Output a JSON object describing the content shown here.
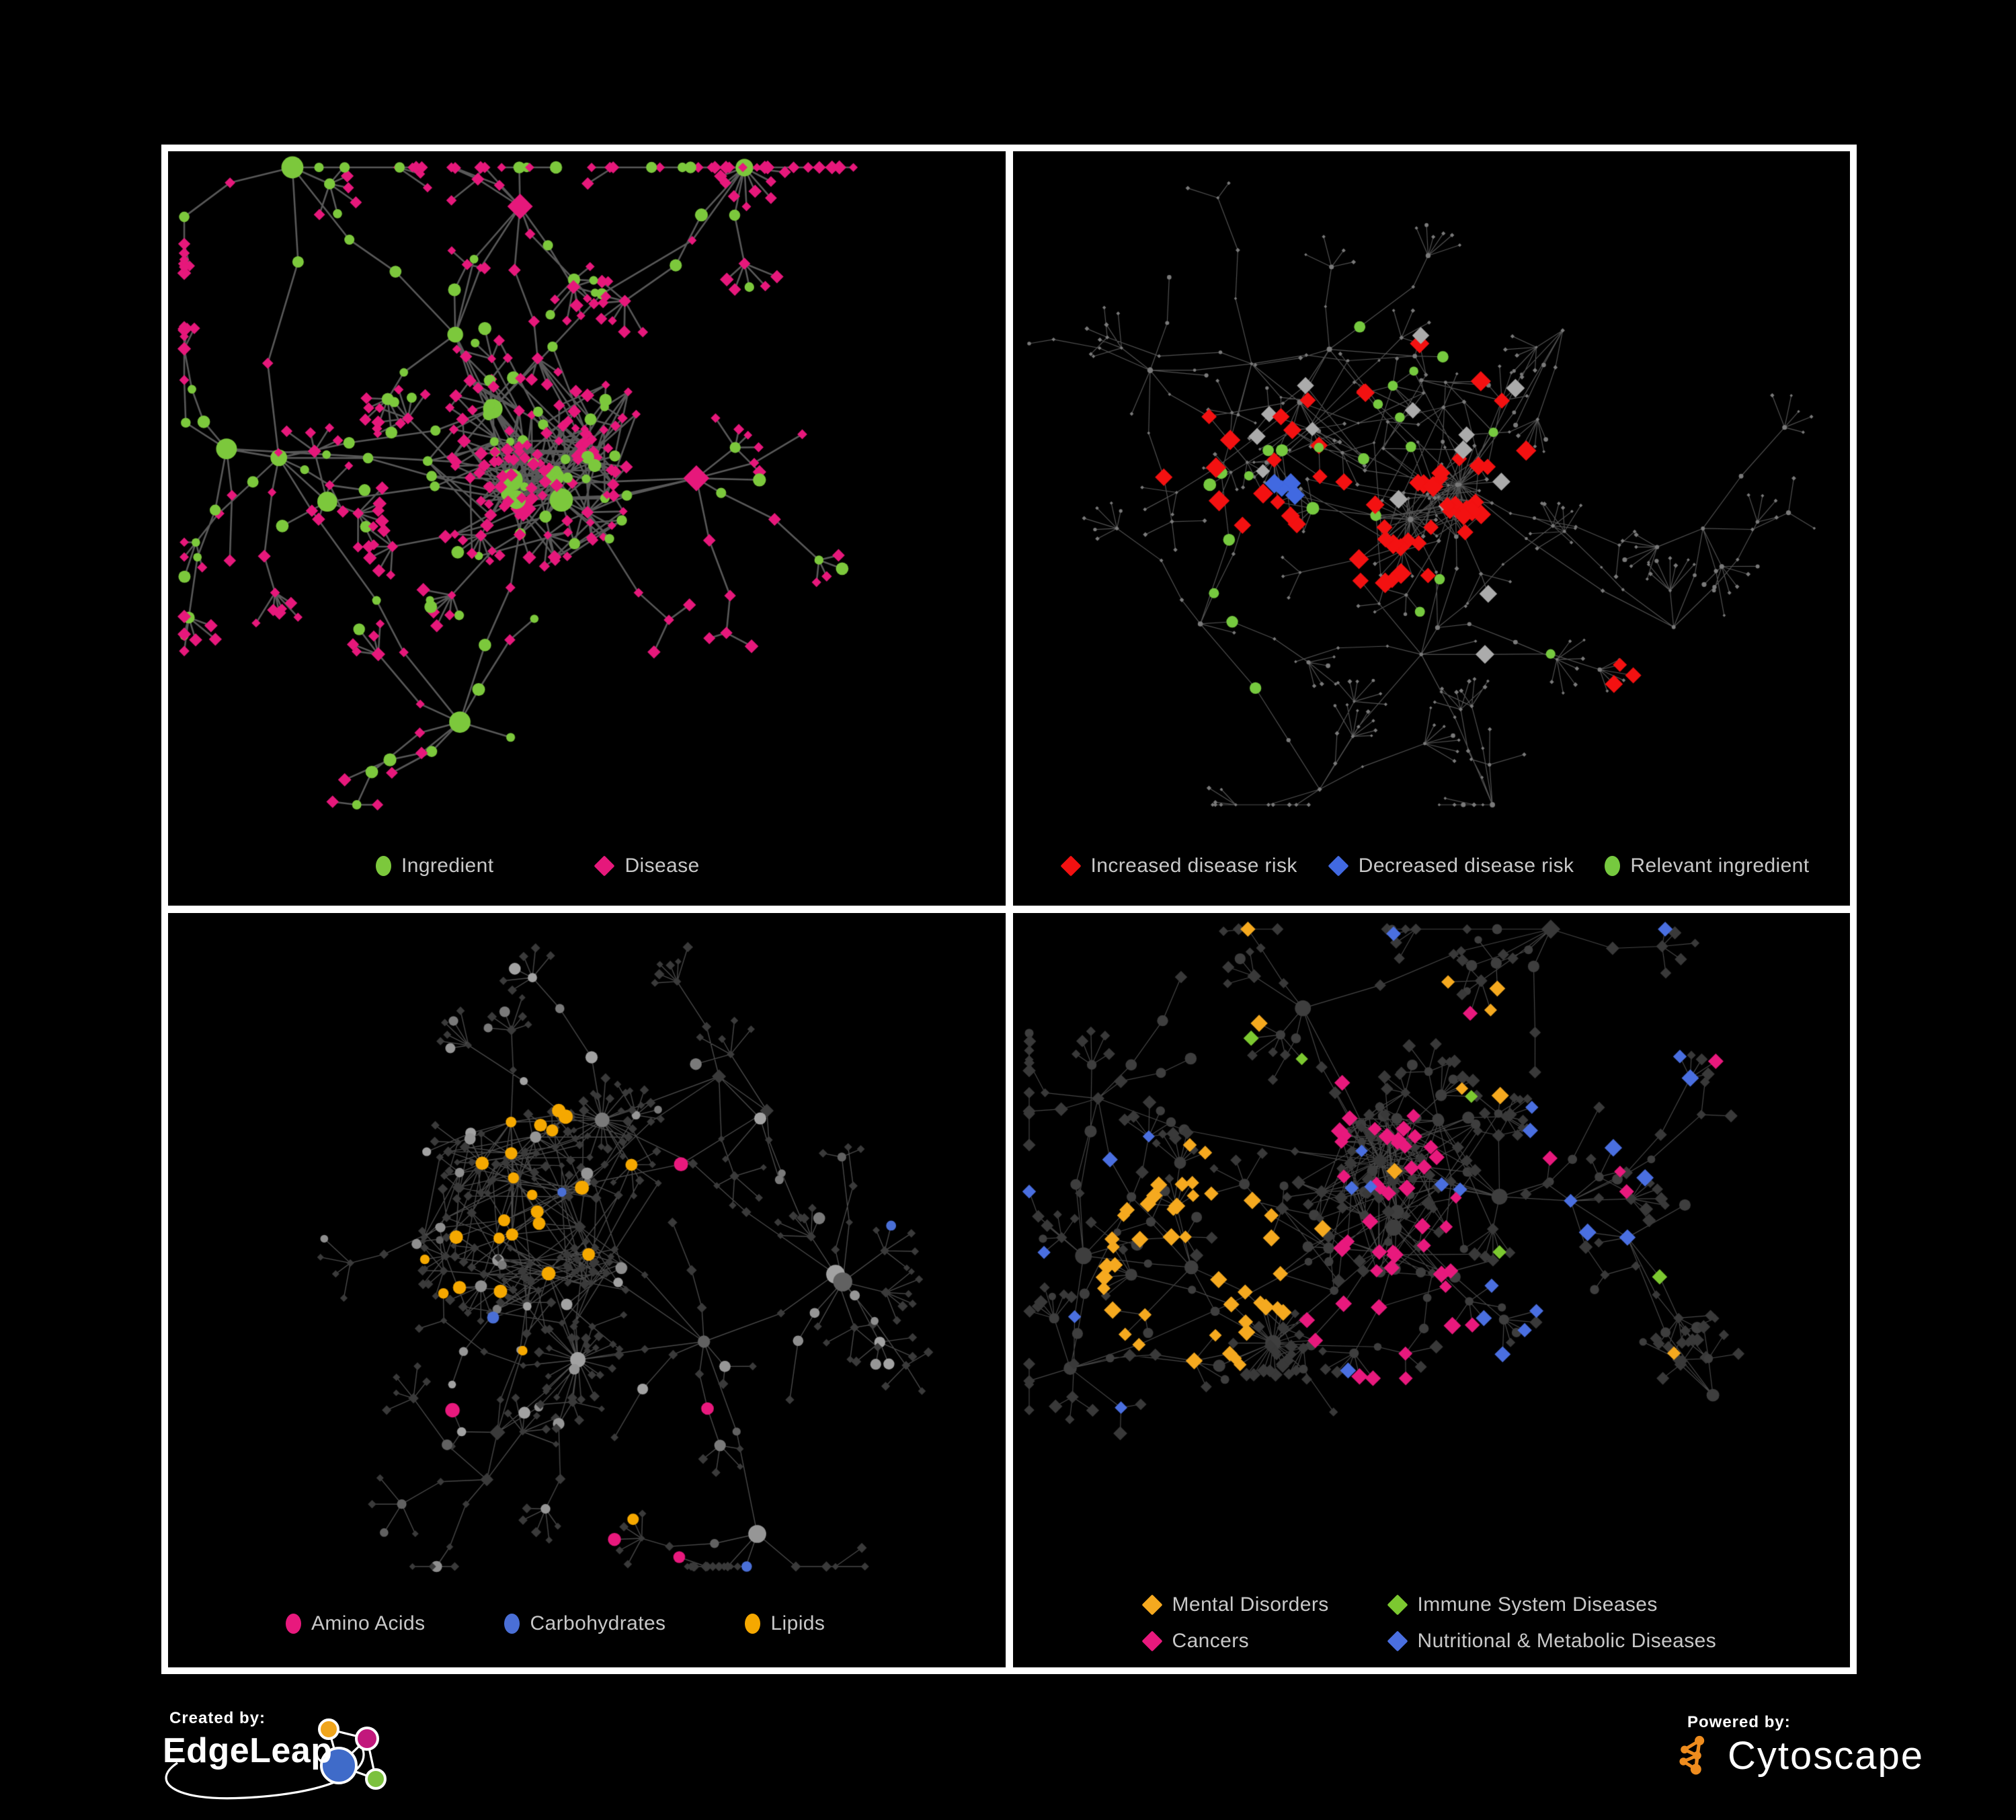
{
  "figure": {
    "background": "#000000",
    "frame_color": "#ffffff"
  },
  "branding": {
    "created_by_label": "Created by:",
    "created_by_name": "EdgeLeap",
    "powered_by_label": "Powered by:",
    "powered_by_name": "Cytoscape",
    "edgeleap_logo_colors": {
      "orange": "#F0A51C",
      "magenta": "#C2187C",
      "blue": "#3F6BC9",
      "green": "#7CC13E",
      "outline": "#ffffff"
    },
    "cytoscape_logo_color": "#EE8C1E"
  },
  "panels": [
    {
      "name": "ingredient-disease-network",
      "legend": [
        {
          "shape": "ellipse",
          "color": "#7CC83C",
          "label": "Ingredient"
        },
        {
          "shape": "diamond",
          "color": "#E6187B",
          "label": "Disease"
        }
      ],
      "net": {
        "seed": 11,
        "hubs": 15,
        "hubMult": 1.9,
        "edge": {
          "color": "#6E6E6E",
          "width": 2.6,
          "alpha": 0.8
        },
        "base": {
          "circle": {
            "color": "#7CC83C",
            "size": 7.5
          },
          "diamond": {
            "color": "#E6187B",
            "size": 8
          }
        },
        "rules": []
      }
    },
    {
      "name": "disease-risk-network",
      "legend": [
        {
          "shape": "diamond",
          "color": "#F31111",
          "label": "Increased disease risk"
        },
        {
          "shape": "diamond",
          "color": "#4169E1",
          "label": "Decreased disease risk"
        },
        {
          "shape": "ellipse",
          "color": "#76C93F",
          "label": "Relevant ingredient"
        }
      ],
      "net": {
        "seed": 29,
        "hubs": 16,
        "hubMult": 1.2,
        "edge": {
          "color": "#5F5F5F",
          "width": 1.2,
          "alpha": 0.85
        },
        "base": {
          "circle": {
            "color": "#7A7A7A",
            "size": 2.8
          },
          "diamond": {
            "color": "#7A7A7A",
            "size": 2.8
          }
        },
        "rules": [
          {
            "target": "diamond",
            "color": "#F31111",
            "size": 13,
            "prob": 0.32,
            "region": [
              0.46,
              0.42,
              0.16
            ]
          },
          {
            "target": "diamond",
            "color": "#F31111",
            "size": 13,
            "prob": 0.22,
            "region": [
              0.25,
              0.42,
              0.1
            ]
          },
          {
            "target": "diamond",
            "color": "#F31111",
            "size": 12,
            "prob": 0.35,
            "region": [
              0.72,
              0.72,
              0.06
            ]
          },
          {
            "target": "diamond",
            "color": "#4169E1",
            "size": 13,
            "prob": 0.4,
            "region": [
              0.27,
              0.46,
              0.07
            ]
          },
          {
            "target": "diamond",
            "color": "#4169E1",
            "size": 12,
            "prob": 0.85,
            "region": [
              0.83,
              0.34,
              0.035
            ]
          },
          {
            "target": "diamond",
            "color": "#ABABAB",
            "size": 12,
            "prob": 0.05,
            "region": [
              0.4,
              0.47,
              0.25
            ]
          },
          {
            "target": "circle",
            "color": "#76C93F",
            "size": 8,
            "prob": 0.3,
            "region": [
              0.38,
              0.45,
              0.22
            ]
          },
          {
            "target": "circle",
            "color": "#76C93F",
            "size": 8,
            "prob": 0.05,
            "region": [
              0.55,
              0.55,
              0.45
            ]
          }
        ]
      }
    },
    {
      "name": "nutrient-class-network",
      "legend": [
        {
          "shape": "ellipse",
          "color": "#E8197D",
          "label": "Amino Acids"
        },
        {
          "shape": "ellipse",
          "color": "#4A6FD6",
          "label": "Carbohydrates"
        },
        {
          "shape": "ellipse",
          "color": "#F5A800",
          "label": "Lipids"
        }
      ],
      "net": {
        "seed": 47,
        "hubs": 15,
        "hubMult": 1.6,
        "edge": {
          "color": "#565656",
          "width": 1.4,
          "alpha": 0.85
        },
        "base": {
          "circle": {
            "color": "#909090",
            "size": 7,
            "shades": [
              "#A2A2A2",
              "#8E8E8E",
              "#7A7A7A",
              "#969696",
              "#616161"
            ]
          },
          "diamond": {
            "color": "#3A3A3A",
            "size": 6
          }
        },
        "rules": [
          {
            "target": "circle",
            "color": "#F5A800",
            "size": 9,
            "prob": 0.8,
            "region": [
              0.46,
              0.36,
              0.1
            ]
          },
          {
            "target": "circle",
            "color": "#F5A800",
            "size": 9,
            "prob": 0.45,
            "region": [
              0.38,
              0.5,
              0.08
            ]
          },
          {
            "target": "circle",
            "color": "#F5A800",
            "size": 9,
            "prob": 0.85,
            "region": [
              0.55,
              0.55,
              0.05
            ]
          },
          {
            "target": "circle",
            "color": "#F5A800",
            "size": 8,
            "prob": 0.07,
            "region": [
              0.5,
              0.45,
              0.5
            ]
          },
          {
            "target": "circle",
            "color": "#4A6FD6",
            "size": 8,
            "prob": 0.3,
            "region": [
              0.47,
              0.37,
              0.08
            ]
          },
          {
            "target": "circle",
            "color": "#4A6FD6",
            "size": 8,
            "prob": 0.03,
            "region": [
              0.5,
              0.5,
              0.55
            ]
          },
          {
            "target": "circle",
            "color": "#E8197D",
            "size": 9,
            "prob": 0.055,
            "region": [
              0.5,
              0.5,
              0.6
            ]
          }
        ]
      }
    },
    {
      "name": "disease-class-network",
      "legend": [
        {
          "shape": "diamond",
          "color": "#F5A91F",
          "label": "Mental Disorders"
        },
        {
          "shape": "diamond",
          "color": "#7CC830",
          "label": "Immune System Diseases"
        },
        {
          "shape": "diamond",
          "color": "#E8197D",
          "label": "Cancers"
        },
        {
          "shape": "diamond",
          "color": "#4A6FE0",
          "label": "Nutritional & Metabolic Diseases"
        }
      ],
      "net": {
        "seed": 83,
        "hubs": 16,
        "hubMult": 1.4,
        "edge": {
          "color": "#585858",
          "width": 1.2,
          "alpha": 0.8
        },
        "base": {
          "circle": {
            "color": "#3E3E3E",
            "size": 7
          },
          "diamond": {
            "color": "#393939",
            "size": 8
          }
        },
        "rules": [
          {
            "target": "diamond",
            "color": "#F5A91F",
            "size": 11,
            "prob": 0.85,
            "region": [
              0.22,
              0.48,
              0.12
            ]
          },
          {
            "target": "diamond",
            "color": "#F5A91F",
            "size": 11,
            "prob": 0.04,
            "region": [
              0.5,
              0.4,
              0.45
            ]
          },
          {
            "target": "diamond",
            "color": "#E8197D",
            "size": 11,
            "prob": 0.5,
            "region": [
              0.45,
              0.5,
              0.11
            ]
          },
          {
            "target": "diamond",
            "color": "#E8197D",
            "size": 11,
            "prob": 0.25,
            "region": [
              0.42,
              0.3,
              0.08
            ]
          },
          {
            "target": "diamond",
            "color": "#E8197D",
            "size": 10,
            "prob": 0.03,
            "region": [
              0.6,
              0.5,
              0.45
            ]
          },
          {
            "target": "diamond",
            "color": "#4A6FE0",
            "size": 11,
            "prob": 0.45,
            "region": [
              0.6,
              0.55,
              0.09
            ]
          },
          {
            "target": "diamond",
            "color": "#4A6FE0",
            "size": 11,
            "prob": 0.3,
            "region": [
              0.75,
              0.3,
              0.14
            ]
          },
          {
            "target": "diamond",
            "color": "#4A6FE0",
            "size": 10,
            "prob": 0.06,
            "region": [
              0.5,
              0.5,
              0.6
            ]
          },
          {
            "target": "diamond",
            "color": "#7CC830",
            "size": 10,
            "prob": 0.03,
            "region": [
              0.45,
              0.45,
              0.35
            ]
          }
        ]
      }
    }
  ]
}
